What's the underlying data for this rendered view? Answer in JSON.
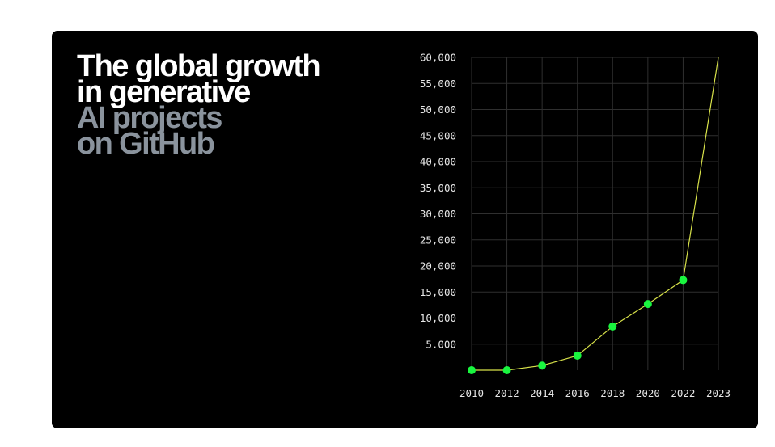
{
  "headline": {
    "line1": "The global growth",
    "line2": "in generative",
    "line3": "AI projects",
    "line4": "on GitHub"
  },
  "colors": {
    "background": "#000000",
    "headline_primary": "#ffffff",
    "headline_secondary": "#8a939d",
    "line": "#d8e24a",
    "marker": "#19f53f",
    "grid": "#2f2f2f",
    "tick_text": "#e6e6e6"
  },
  "chart_data": {
    "type": "line",
    "title": "",
    "xlabel": "",
    "ylabel": "",
    "x": [
      "2010",
      "2012",
      "2014",
      "2016",
      "2018",
      "2020",
      "2022",
      "2023"
    ],
    "series": [
      {
        "values": [
          0,
          0,
          900,
          2800,
          8400,
          12700,
          17300,
          60000
        ]
      }
    ],
    "marker_points": 7,
    "ylim": [
      0,
      60000
    ],
    "yticks": [
      5000,
      10000,
      15000,
      20000,
      25000,
      30000,
      35000,
      40000,
      45000,
      50000,
      55000,
      60000
    ],
    "ytick_labels": [
      "5.000",
      "10,000",
      "15,000",
      "20,000",
      "25,000",
      "30,000",
      "35,000",
      "40,000",
      "45,000",
      "50,000",
      "55,000",
      "60,000"
    ],
    "grid": true
  }
}
